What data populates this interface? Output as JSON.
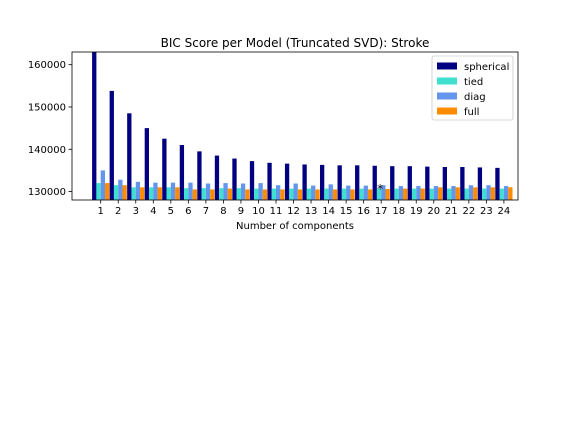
{
  "chart_data": {
    "type": "bar",
    "title": "BIC Score per Model (Truncated SVD): Stroke",
    "xlabel": "Number of components",
    "ylabel": "",
    "categories": [
      "1",
      "2",
      "3",
      "4",
      "5",
      "6",
      "7",
      "8",
      "9",
      "10",
      "11",
      "12",
      "13",
      "14",
      "15",
      "16",
      "17",
      "18",
      "19",
      "20",
      "21",
      "22",
      "23",
      "24"
    ],
    "ylim": [
      128000,
      163000
    ],
    "yticks": [
      130000,
      140000,
      150000,
      160000
    ],
    "ytick_labels": [
      "130000",
      "140000",
      "150000",
      "160000"
    ],
    "grid": false,
    "legend_position": "top-right",
    "best_marker": {
      "category": "17",
      "symbol": "*"
    },
    "series": [
      {
        "name": "spherical",
        "color": "#000080",
        "values": [
          163000,
          153800,
          148500,
          145000,
          142500,
          141000,
          139500,
          138500,
          137800,
          137200,
          136800,
          136600,
          136400,
          136300,
          136200,
          136200,
          136100,
          136000,
          136000,
          135900,
          135800,
          135800,
          135700,
          135600
        ]
      },
      {
        "name": "tied",
        "color": "#40E0D0",
        "values": [
          132000,
          131500,
          131000,
          131000,
          131000,
          130800,
          130800,
          130800,
          130800,
          130700,
          130700,
          130700,
          130700,
          130700,
          130700,
          130700,
          130700,
          130700,
          130700,
          130700,
          130700,
          130700,
          130700,
          130700
        ]
      },
      {
        "name": "diag",
        "color": "#6495ED",
        "values": [
          135000,
          132800,
          132300,
          132100,
          132100,
          132100,
          131900,
          132000,
          131900,
          132000,
          131500,
          131900,
          131400,
          131700,
          131400,
          131400,
          131500,
          131300,
          131300,
          131300,
          131300,
          131500,
          131500,
          131300
        ]
      },
      {
        "name": "full",
        "color": "#FF8C00",
        "values": [
          132000,
          131500,
          131000,
          131000,
          131000,
          130500,
          130500,
          130700,
          130500,
          130500,
          130500,
          130500,
          130500,
          130500,
          130500,
          130500,
          130600,
          130700,
          130700,
          131000,
          131000,
          131000,
          131000,
          131000
        ]
      }
    ]
  }
}
